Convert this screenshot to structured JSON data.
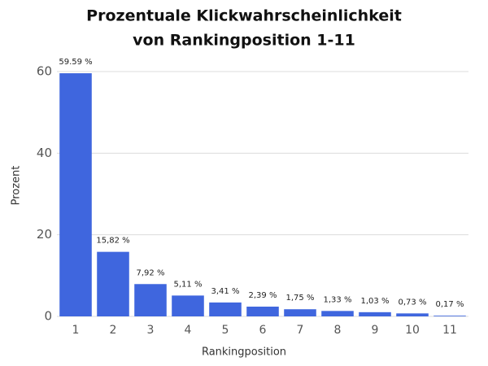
{
  "chart_data": {
    "type": "bar",
    "title": [
      "Prozentuale Klickwahrscheinlichkeit",
      "von Rankingposition 1-11"
    ],
    "x_label": "Rankingposition",
    "y_label": "Prozent",
    "categories": [
      "1",
      "2",
      "3",
      "4",
      "5",
      "6",
      "7",
      "8",
      "9",
      "10",
      "11"
    ],
    "values": [
      59.59,
      15.82,
      7.92,
      5.11,
      3.41,
      2.39,
      1.75,
      1.33,
      1.03,
      0.73,
      0.17
    ],
    "value_labels": [
      "59.59 %",
      "15,82 %",
      "7,92 %",
      "5,11 %",
      "3,41 %",
      "2,39 %",
      "1,75 %",
      "1,33 %",
      "1,03 %",
      "0,73 %",
      "0,17 %"
    ],
    "color": "#3f66de",
    "ylim": [
      0,
      60
    ],
    "yticks": [
      0,
      20,
      40,
      60
    ],
    "grid": true
  }
}
